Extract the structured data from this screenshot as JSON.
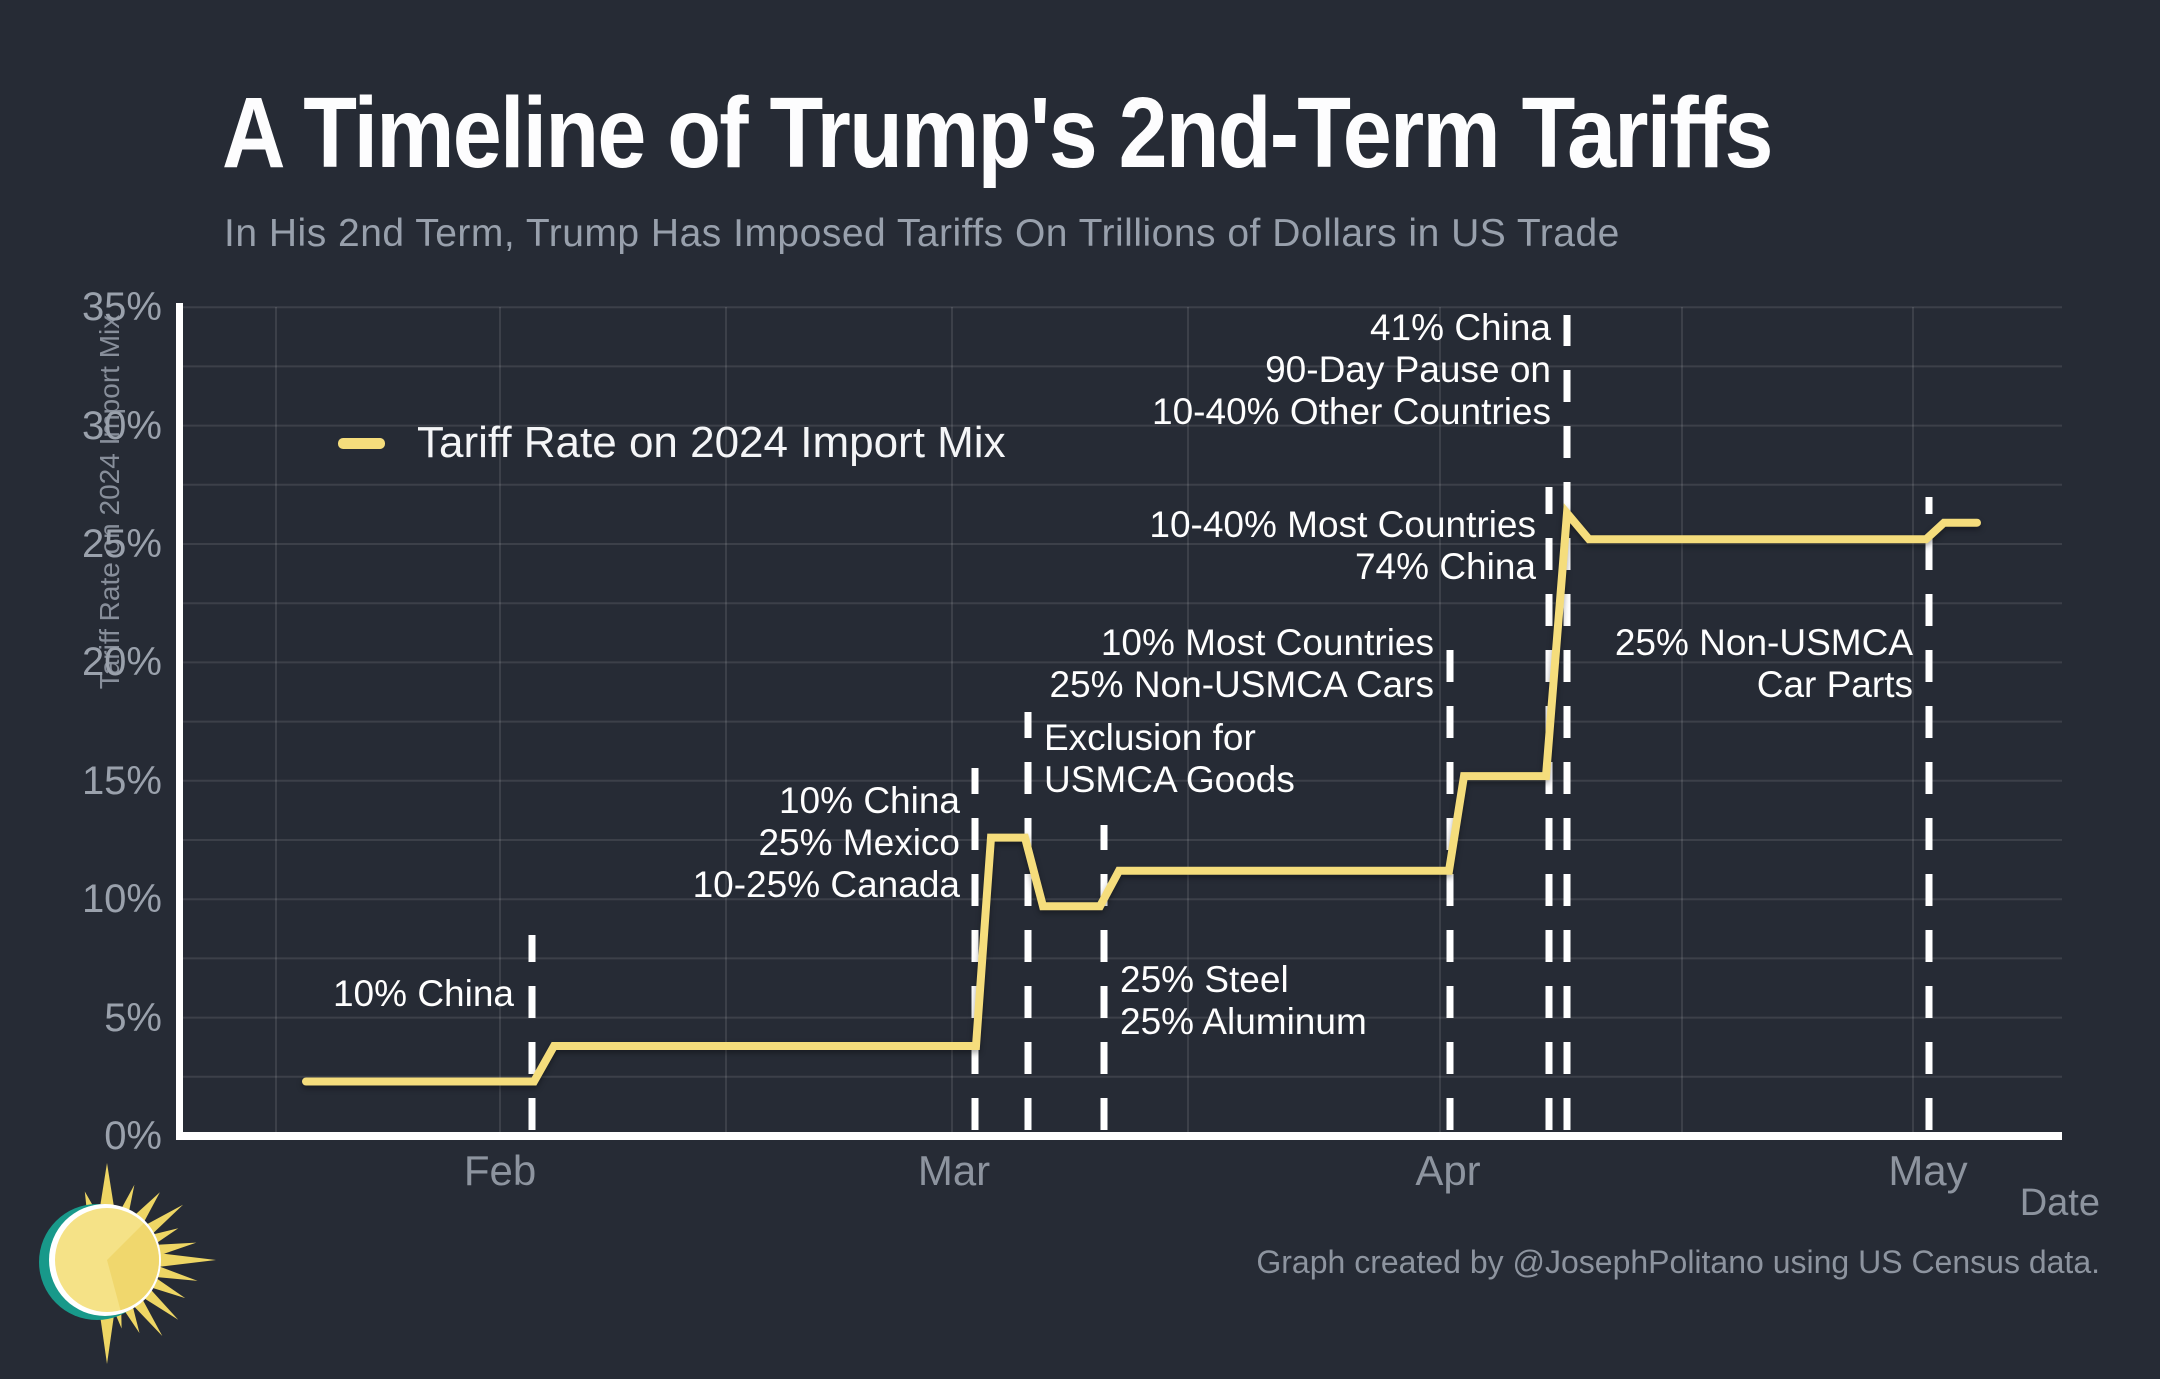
{
  "page": {
    "title": "A Timeline of Trump's 2nd-Term Tariffs",
    "subtitle": "In His 2nd Term, Trump Has Imposed Tariffs On Trillions of Dollars in US Trade"
  },
  "legend": {
    "label": "Tariff Rate on 2024 Import Mix"
  },
  "axes": {
    "y_title": "Tariff Rate on 2024 Import Mix",
    "x_title": "Date",
    "y_ticks": [
      {
        "label": "0%",
        "value": 0
      },
      {
        "label": "5%",
        "value": 5
      },
      {
        "label": "10%",
        "value": 10
      },
      {
        "label": "15%",
        "value": 15
      },
      {
        "label": "20%",
        "value": 20
      },
      {
        "label": "25%",
        "value": 25
      },
      {
        "label": "30%",
        "value": 30
      },
      {
        "label": "35%",
        "value": 35
      }
    ],
    "x_ticks": [
      "Feb",
      "Mar",
      "Apr",
      "May"
    ]
  },
  "footer": {
    "attribution": "Graph created by @JosephPolitano using US Census data."
  },
  "colors": {
    "background": "#262b35",
    "line": "#f5dd7c",
    "event_dash": "#ffffff",
    "grid": "rgba(255,255,255,0.10)",
    "axis": "#ffffff",
    "text_primary": "#fefefe",
    "text_muted": "#8d949f",
    "sun_teal": "#18998a",
    "sun_yellow": "#f5e287",
    "sun_yellow_dark": "#f0d76d",
    "sun_rays": "#eed664"
  },
  "chart_data": {
    "type": "line",
    "title": "A Timeline of Trump's 2nd-Term Tariffs",
    "subtitle": "In His 2nd Term, Trump Has Imposed Tariffs On Trillions of Dollars in US Trade",
    "xlabel": "Date",
    "ylabel": "Tariff Rate on 2024 Import Mix",
    "ylim": [
      0,
      35
    ],
    "y_tick_step_pct": 5,
    "gridline_step_pct": 2.5,
    "grid": true,
    "legend_position": "upper-left",
    "x_range": [
      "Jan 20",
      "May 6"
    ],
    "series": [
      {
        "name": "Tariff Rate on 2024 Import Mix",
        "color": "#f5dd7c",
        "points": [
          {
            "date": "Jan 20",
            "value": 2.3
          },
          {
            "date": "Feb 3",
            "value": 2.3
          },
          {
            "date": "Feb 4",
            "value": 3.8
          },
          {
            "date": "Mar 3",
            "value": 3.8
          },
          {
            "date": "Mar 4",
            "value": 12.6
          },
          {
            "date": "Mar 6",
            "value": 12.6
          },
          {
            "date": "Mar 7",
            "value": 9.7
          },
          {
            "date": "Mar 11",
            "value": 9.7
          },
          {
            "date": "Mar 12",
            "value": 11.2
          },
          {
            "date": "Apr 2",
            "value": 11.2
          },
          {
            "date": "Apr 3",
            "value": 15.2
          },
          {
            "date": "Apr 8",
            "value": 15.2
          },
          {
            "date": "Apr 9",
            "value": 26.3
          },
          {
            "date": "Apr 10",
            "value": 25.2
          },
          {
            "date": "May 2",
            "value": 25.2
          },
          {
            "date": "May 3",
            "value": 25.9
          },
          {
            "date": "May 6",
            "value": 25.9
          }
        ]
      }
    ],
    "annotations": [
      {
        "date": "Feb 4",
        "align": "right",
        "lines": [
          "10% China"
        ]
      },
      {
        "date": "Mar 4",
        "align": "right",
        "lines": [
          "10% China",
          "25% Mexico",
          "10-25% Canada"
        ]
      },
      {
        "date": "Mar 7",
        "align": "left",
        "lines": [
          "Exclusion for",
          "USMCA Goods"
        ]
      },
      {
        "date": "Mar 12",
        "align": "left",
        "lines": [
          "25% Steel",
          "25% Aluminum"
        ]
      },
      {
        "date": "Apr 3",
        "align": "right",
        "lines": [
          "10% Most Countries",
          "25% Non-USMCA Cars"
        ]
      },
      {
        "date": "Apr 9",
        "align": "right",
        "lines": [
          "10-40% Most Countries",
          "74% China"
        ]
      },
      {
        "date": "Apr 10",
        "align": "right",
        "lines": [
          "41% China",
          "90-Day Pause on",
          "10-40% Other Countries"
        ]
      },
      {
        "date": "May 3",
        "align": "right",
        "lines": [
          "25% Non-USMCA",
          "Car Parts"
        ]
      }
    ]
  }
}
